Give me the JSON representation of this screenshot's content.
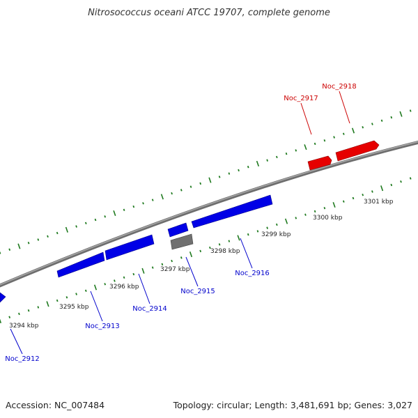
{
  "title": "Nitrosococcus oceani ATCC 19707, complete genome",
  "accession": "Accession: NC_007484",
  "summary": "Topology: circular; Length: 3,481,691 bp; Genes: 3,027",
  "colors": {
    "backbone": "#8a8a8a",
    "ticks": "#1f7a1f",
    "forward_gene": "#e60000",
    "reverse_gene": "#0000e6",
    "other_feature": "#707070",
    "forward_label": "#cc0000",
    "reverse_label": "#0000cc"
  },
  "scale_labels": [
    "3294 kbp",
    "3295 kbp",
    "3296 kbp",
    "3297 kbp",
    "3298 kbp",
    "3299 kbp",
    "3300 kbp",
    "3301 kbp"
  ],
  "genes": [
    {
      "label": "Noc_2912",
      "strand": "reverse"
    },
    {
      "label": "Noc_2913",
      "strand": "reverse"
    },
    {
      "label": "Noc_2914",
      "strand": "reverse"
    },
    {
      "label": "Noc_2915",
      "strand": "reverse"
    },
    {
      "label": "Noc_2916",
      "strand": "reverse"
    },
    {
      "label": "Noc_2917",
      "strand": "forward"
    },
    {
      "label": "Noc_2918",
      "strand": "forward"
    }
  ]
}
